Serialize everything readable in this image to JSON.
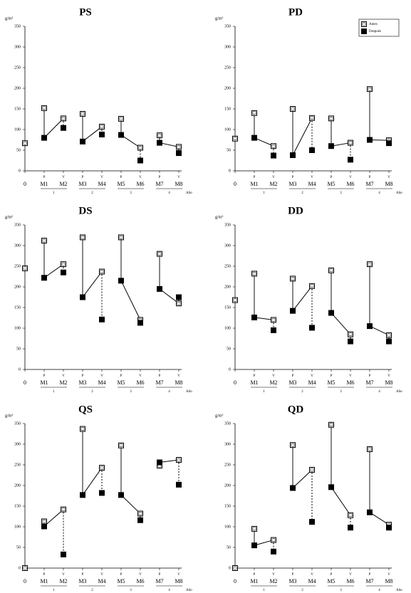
{
  "chart_data": [
    {
      "type": "scatter",
      "title": "PS",
      "y_label": "g/m²",
      "x_label": "Año",
      "categories": [
        "0",
        "M1",
        "M2",
        "M3",
        "M4",
        "M5",
        "M6",
        "M7",
        "M8"
      ],
      "seasons": [
        null,
        "P",
        "V",
        "P",
        "V",
        "P",
        "V",
        "P",
        "V"
      ],
      "groups": [
        "1",
        "2",
        "3",
        "4"
      ],
      "ylim": [
        0,
        350
      ],
      "yticks": [
        0,
        50,
        100,
        150,
        200,
        250,
        300,
        350
      ],
      "series": [
        {
          "color": "#000000",
          "values": [
            67,
            152,
            127,
            138,
            107,
            126,
            56,
            86,
            58
          ]
        },
        {
          "color": "#000000",
          "values": [
            null,
            80,
            104,
            71,
            88,
            87,
            25,
            68,
            43
          ]
        }
      ]
    },
    {
      "type": "scatter",
      "title": "PD",
      "y_label": "g/m²",
      "x_label": "Año",
      "legend": "upper right",
      "categories": [
        "0",
        "M1",
        "M2",
        "M3",
        "M4",
        "M5",
        "M6",
        "M7",
        "M8"
      ],
      "seasons": [
        null,
        "P",
        "V",
        "P",
        "V",
        "P",
        "V",
        "P",
        "V"
      ],
      "groups": [
        "1",
        "2",
        "3",
        "4"
      ],
      "ylim": [
        0,
        350
      ],
      "yticks": [
        0,
        50,
        100,
        150,
        200,
        250,
        300,
        350
      ],
      "series": [
        {
          "name": "Antes",
          "color": "#000000",
          "values": [
            78,
            140,
            60,
            150,
            128,
            127,
            68,
            198,
            74
          ]
        },
        {
          "name": "Después",
          "color": "#000000",
          "values": [
            null,
            80,
            37,
            38,
            50,
            60,
            27,
            75,
            67
          ]
        }
      ]
    },
    {
      "type": "scatter",
      "title": "DS",
      "y_label": "g/m²",
      "x_label": "Año",
      "categories": [
        "0",
        "M1",
        "M2",
        "M3",
        "M4",
        "M5",
        "M6",
        "M7",
        "M8"
      ],
      "seasons": [
        null,
        "P",
        "V",
        "P",
        "V",
        "P",
        "V",
        "P",
        "V"
      ],
      "groups": [
        "1",
        "2",
        "3",
        "4"
      ],
      "ylim": [
        0,
        350
      ],
      "yticks": [
        0,
        50,
        100,
        150,
        200,
        250,
        300,
        350
      ],
      "series": [
        {
          "color": "#000000",
          "values": [
            245,
            312,
            255,
            320,
            237,
            320,
            120,
            280,
            160
          ]
        },
        {
          "color": "#000000",
          "values": [
            null,
            222,
            235,
            175,
            121,
            215,
            113,
            195,
            175
          ]
        }
      ]
    },
    {
      "type": "scatter",
      "title": "DD",
      "y_label": "g/m²",
      "x_label": "Año",
      "categories": [
        "0",
        "M1",
        "M2",
        "M3",
        "M4",
        "M5",
        "M6",
        "M7",
        "M8"
      ],
      "seasons": [
        null,
        "P",
        "V",
        "P",
        "V",
        "P",
        "V",
        "P",
        "V"
      ],
      "groups": [
        "1",
        "2",
        "3",
        "4"
      ],
      "ylim": [
        0,
        350
      ],
      "yticks": [
        0,
        50,
        100,
        150,
        200,
        250,
        300,
        350
      ],
      "series": [
        {
          "color": "#000000",
          "values": [
            168,
            232,
            120,
            220,
            202,
            240,
            85,
            255,
            83
          ]
        },
        {
          "color": "#000000",
          "values": [
            null,
            126,
            95,
            142,
            101,
            137,
            68,
            105,
            68
          ]
        }
      ]
    },
    {
      "type": "scatter",
      "title": "QS",
      "y_label": "g/m²",
      "x_label": "Año",
      "categories": [
        "0",
        "M1",
        "M2",
        "M3",
        "M4",
        "M5",
        "M6",
        "M7",
        "M8"
      ],
      "seasons": [
        null,
        "P",
        "V",
        "P",
        "V",
        "P",
        "V",
        "P",
        "V"
      ],
      "groups": [
        "1",
        "2",
        "3",
        "4"
      ],
      "ylim": [
        0,
        350
      ],
      "yticks": [
        0,
        50,
        100,
        150,
        200,
        250,
        300,
        350
      ],
      "series": [
        {
          "color": "#000000",
          "values": [
            0,
            113,
            142,
            337,
            243,
            297,
            132,
            248,
            262
          ]
        },
        {
          "color": "#000000",
          "values": [
            null,
            101,
            33,
            177,
            182,
            177,
            116,
            256,
            202
          ]
        }
      ]
    },
    {
      "type": "scatter",
      "title": "QD",
      "y_label": "g/m²",
      "x_label": "Año",
      "categories": [
        "0",
        "M1",
        "M2",
        "M3",
        "M4",
        "M5",
        "M6",
        "M7",
        "M8"
      ],
      "seasons": [
        null,
        "P",
        "V",
        "P",
        "V",
        "P",
        "V",
        "P",
        "V"
      ],
      "groups": [
        "1",
        "2",
        "3",
        "4"
      ],
      "ylim": [
        0,
        350
      ],
      "yticks": [
        0,
        50,
        100,
        150,
        200,
        250,
        300,
        350
      ],
      "series": [
        {
          "color": "#000000",
          "values": [
            0,
            95,
            68,
            298,
            238,
            347,
            128,
            288,
            105
          ]
        },
        {
          "color": "#000000",
          "values": [
            null,
            55,
            40,
            194,
            112,
            196,
            98,
            135,
            98
          ]
        }
      ]
    }
  ]
}
